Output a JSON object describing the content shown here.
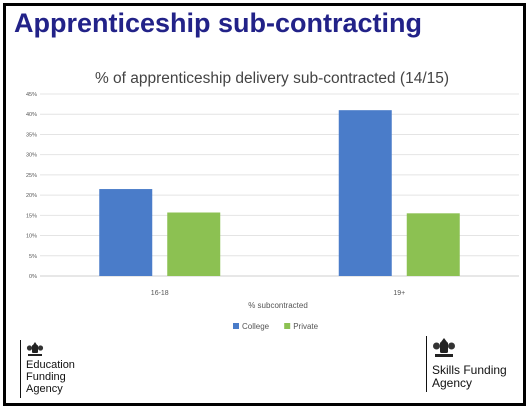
{
  "slide": {
    "title": "Apprenticeship sub-contracting"
  },
  "chart_data": {
    "type": "bar",
    "title": "% of apprenticeship delivery sub-contracted (14/15)",
    "xlabel": "% subcontracted",
    "ylabel": "",
    "categories": [
      "16-18",
      "19+"
    ],
    "series": [
      {
        "name": "College",
        "values": [
          21.5,
          41
        ],
        "color": "#4a7cc9"
      },
      {
        "name": "Private",
        "values": [
          15.7,
          15.5
        ],
        "color": "#8cc152"
      }
    ],
    "ylim": [
      0,
      45
    ],
    "yticks": [
      "0%",
      "5%",
      "10%",
      "15%",
      "20%",
      "25%",
      "30%",
      "35%",
      "40%",
      "45%"
    ],
    "grid": true,
    "legend": "bottom"
  },
  "logos": {
    "left": {
      "lines": [
        "Education",
        "Funding",
        "Agency"
      ]
    },
    "right": {
      "lines": [
        "Skills Funding",
        "Agency"
      ]
    }
  },
  "colors": {
    "title": "#222288",
    "gridline": "#e4e4e4",
    "axis_text": "#555555"
  }
}
